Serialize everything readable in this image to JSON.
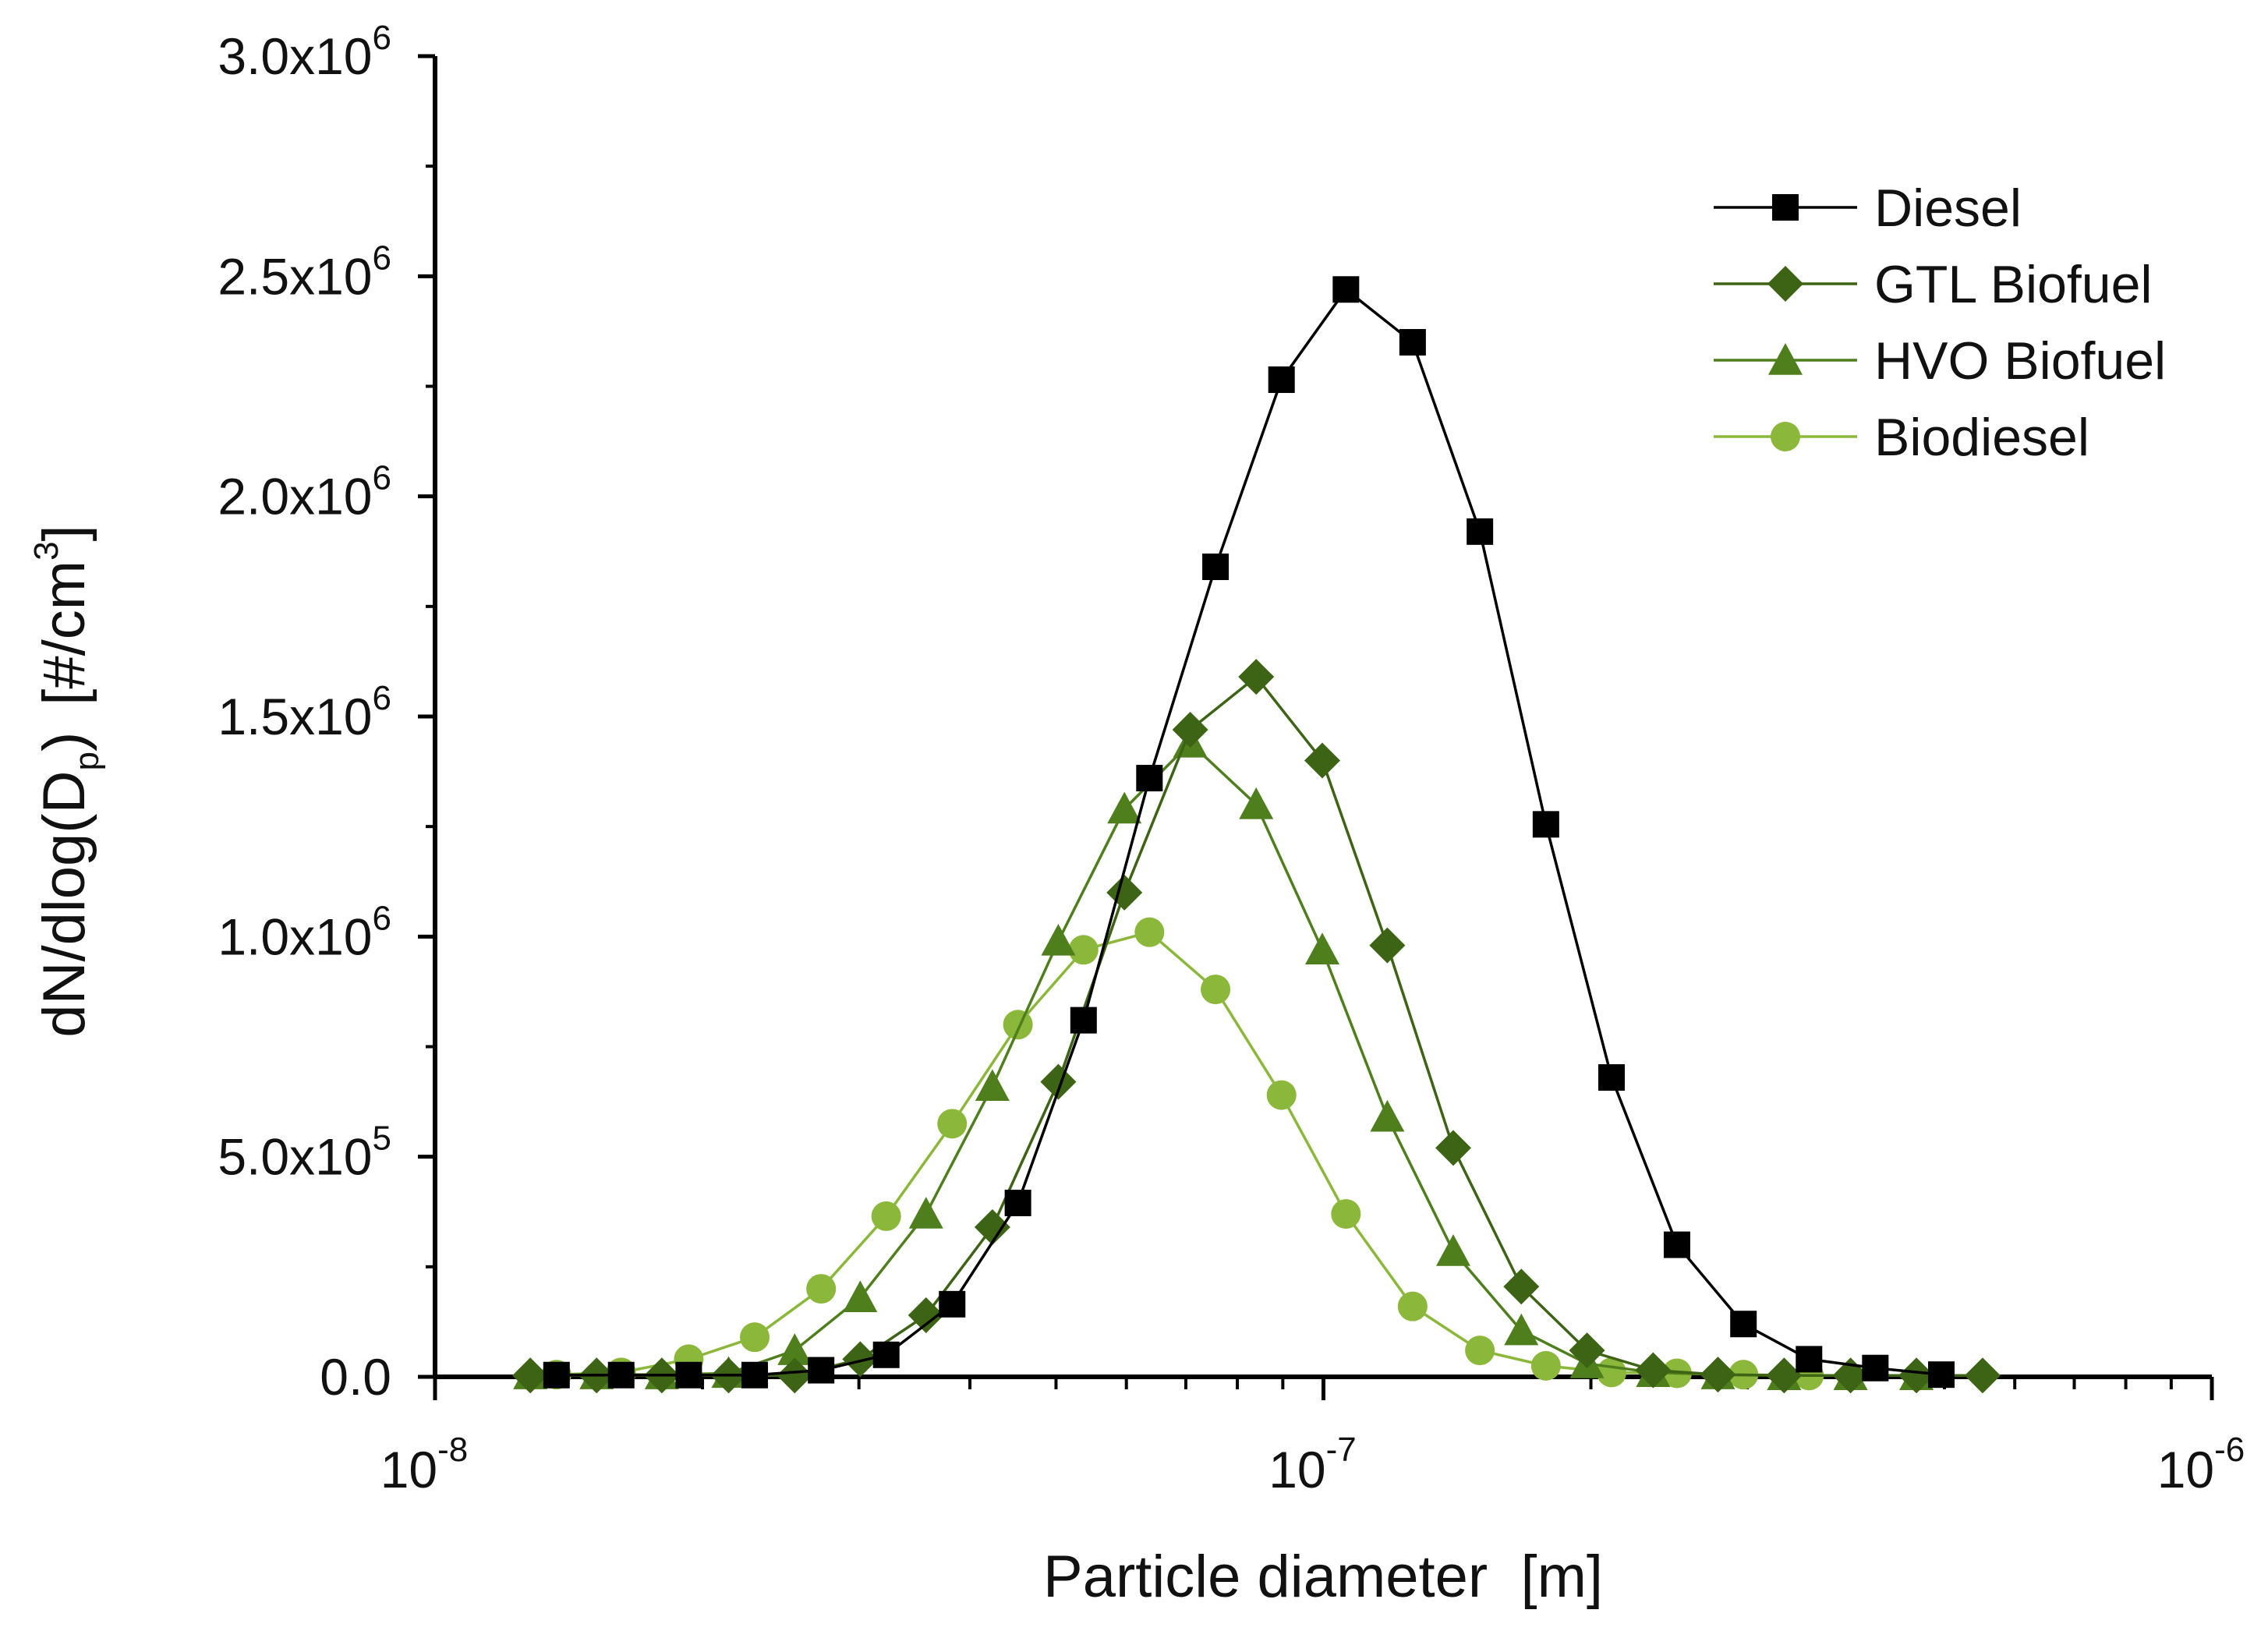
{
  "chart_data": {
    "type": "line",
    "title": "",
    "xlabel": "Particle diameter  [m]",
    "ylabel": {
      "main": "dN/dlog(D",
      "sub": "p",
      "close": ")",
      "unit_open": "[#/cm",
      "unit_sup": "3",
      "unit_close": "]"
    },
    "x_scale": "log",
    "xlim": [
      1e-08,
      1e-06
    ],
    "ylim": [
      0,
      3000000
    ],
    "x_ticks": [
      {
        "value": 1e-08,
        "base": "10",
        "exp": "-8"
      },
      {
        "value": 1e-07,
        "base": "10",
        "exp": "-7"
      },
      {
        "value": 1e-06,
        "base": "10",
        "exp": "-6"
      }
    ],
    "y_ticks": [
      {
        "value": 0,
        "mant": "0.0",
        "exp": ""
      },
      {
        "value": 500000,
        "mant": "5.0x10",
        "exp": "5"
      },
      {
        "value": 1000000,
        "mant": "1.0x10",
        "exp": "6"
      },
      {
        "value": 1500000,
        "mant": "1.5x10",
        "exp": "6"
      },
      {
        "value": 2000000,
        "mant": "2.0x10",
        "exp": "6"
      },
      {
        "value": 2500000,
        "mant": "2.5x10",
        "exp": "6"
      },
      {
        "value": 3000000,
        "mant": "3.0x10",
        "exp": "6"
      }
    ],
    "legend_position": "top-right",
    "series": [
      {
        "name": "Diesel",
        "color": "#000000",
        "marker": "square",
        "x": [
          1.37e-08,
          1.62e-08,
          1.93e-08,
          2.29e-08,
          2.72e-08,
          3.22e-08,
          3.82e-08,
          4.53e-08,
          5.37e-08,
          6.37e-08,
          7.56e-08,
          8.97e-08,
          1.06e-07,
          1.26e-07,
          1.5e-07,
          1.78e-07,
          2.11e-07,
          2.5e-07,
          2.97e-07,
          3.52e-07,
          4.18e-07,
          4.96e-07
        ],
        "values": [
          4000,
          4000,
          4000,
          4000,
          15000,
          50000,
          165000,
          395000,
          810000,
          1360000,
          1840000,
          2265000,
          2470000,
          2350000,
          1920000,
          1255000,
          680000,
          300000,
          120000,
          40000,
          20000,
          5000
        ]
      },
      {
        "name": "GTL Biofuel",
        "color": "#3d6414",
        "marker": "diamond",
        "x": [
          1.28e-08,
          1.52e-08,
          1.8e-08,
          2.14e-08,
          2.54e-08,
          3.01e-08,
          3.57e-08,
          4.24e-08,
          5.03e-08,
          5.97e-08,
          7.08e-08,
          8.4e-08,
          9.97e-08,
          1.18e-07,
          1.4e-07,
          1.67e-07,
          1.98e-07,
          2.35e-07,
          2.78e-07,
          3.3e-07,
          3.92e-07,
          4.65e-07,
          5.52e-07
        ],
        "values": [
          3000,
          3000,
          3000,
          3000,
          3000,
          40000,
          140000,
          340000,
          670000,
          1100000,
          1470000,
          1590000,
          1400000,
          980000,
          520000,
          205000,
          60000,
          15000,
          5000,
          3000,
          3000,
          3000,
          3000
        ]
      },
      {
        "name": "HVO Biofuel",
        "color": "#4f7f1d",
        "marker": "triangle",
        "x": [
          1.28e-08,
          1.52e-08,
          1.8e-08,
          2.14e-08,
          2.54e-08,
          3.01e-08,
          3.57e-08,
          4.24e-08,
          5.03e-08,
          5.97e-08,
          7.08e-08,
          8.4e-08,
          9.97e-08,
          1.18e-07,
          1.4e-07,
          1.67e-07,
          1.98e-07,
          2.35e-07,
          2.78e-07,
          3.3e-07,
          3.92e-07,
          4.65e-07
        ],
        "values": [
          5000,
          5000,
          5000,
          8000,
          60000,
          180000,
          370000,
          660000,
          990000,
          1290000,
          1440000,
          1300000,
          970000,
          590000,
          285000,
          105000,
          30000,
          10000,
          5000,
          3000,
          3000,
          3000
        ]
      },
      {
        "name": "Biodiesel",
        "color": "#8bb83a",
        "marker": "circle",
        "x": [
          1.37e-08,
          1.62e-08,
          1.93e-08,
          2.29e-08,
          2.72e-08,
          3.22e-08,
          3.82e-08,
          4.53e-08,
          5.37e-08,
          6.37e-08,
          7.56e-08,
          8.97e-08,
          1.06e-07,
          1.26e-07,
          1.5e-07,
          1.78e-07,
          2.11e-07,
          2.5e-07,
          2.97e-07,
          3.52e-07
        ],
        "values": [
          5000,
          10000,
          40000,
          90000,
          200000,
          365000,
          575000,
          800000,
          970000,
          1010000,
          880000,
          640000,
          370000,
          160000,
          60000,
          25000,
          10000,
          8000,
          5000,
          3000
        ]
      }
    ]
  }
}
